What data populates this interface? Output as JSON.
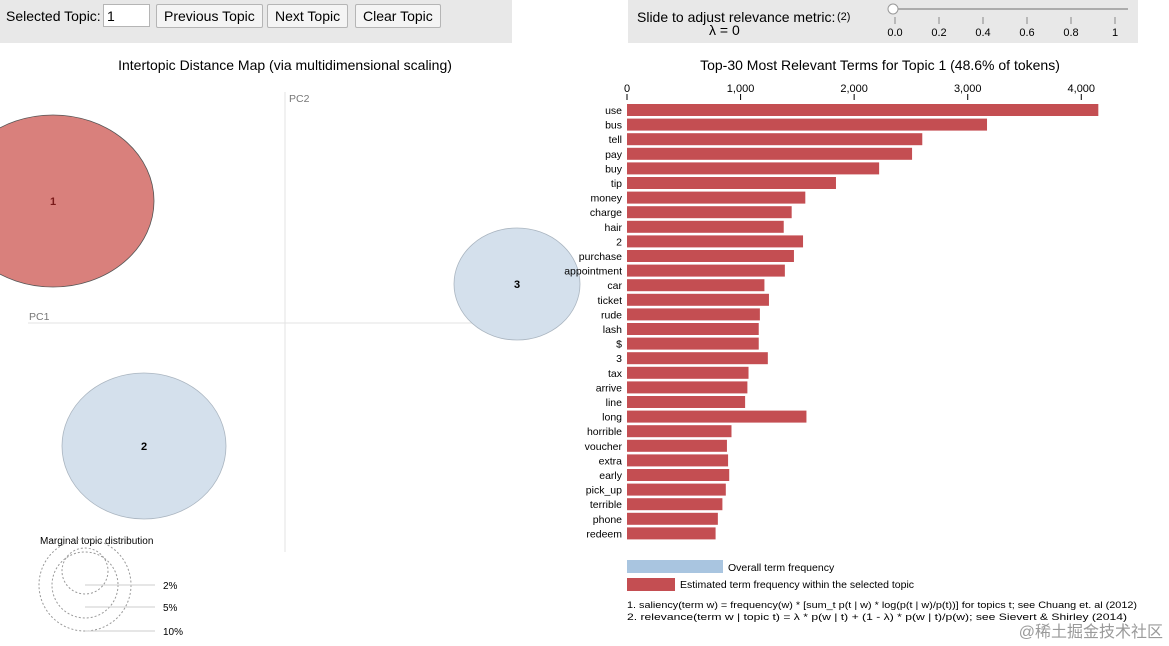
{
  "controls": {
    "selected_label": "Selected Topic:",
    "selected_value": "1",
    "prev_label": "Previous Topic",
    "next_label": "Next Topic",
    "clear_label": "Clear Topic",
    "slider_label": "Slide to adjust relevance metric:",
    "slider_note": "(2)",
    "lambda_text": "λ = 0",
    "slider_ticks": [
      "0.0",
      "0.2",
      "0.4",
      "0.6",
      "0.8",
      "1"
    ],
    "lambda_value": 0
  },
  "left": {
    "title": "Intertopic Distance Map (via multidimensional scaling)",
    "pc1": "PC1",
    "pc2": "PC2",
    "topics": [
      "1",
      "2",
      "3"
    ],
    "marginal_title": "Marginal topic distribution",
    "marginal_labels": [
      "2%",
      "5%",
      "10%"
    ]
  },
  "legend": {
    "overall": "Overall term frequency",
    "estimated": "Estimated term frequency within the selected topic"
  },
  "footnote": {
    "line1": "1. saliency(term w) = frequency(w) * [sum_t p(t | w) * log(p(t | w)/p(t))] for topics t; see Chuang et. al (2012)",
    "line2": "2. relevance(term w | topic t) = λ * p(w | t) + (1 - λ) * p(w | t)/p(w); see Sievert & Shirley (2014)"
  },
  "watermark": "@稀土掘金技术社区",
  "colors": {
    "estimated": "#c44e52",
    "overall": "#a9c5e0",
    "topic_selected": "#d9807c",
    "topic_other": "#d4e0ec"
  },
  "chart_data": {
    "type": "bar",
    "orientation": "horizontal",
    "title": "Top-30 Most Relevant Terms for Topic 1 (48.6% of tokens)",
    "xlim": [
      0,
      4200
    ],
    "xticks": [
      0,
      1000,
      2000,
      3000,
      4000
    ],
    "xtick_labels": [
      "0",
      "1,000",
      "2,000",
      "3,000",
      "4,000"
    ],
    "categories": [
      "use",
      "bus",
      "tell",
      "pay",
      "buy",
      "tip",
      "money",
      "charge",
      "hair",
      "2",
      "purchase",
      "appointment",
      "car",
      "ticket",
      "rude",
      "lash",
      "$",
      "3",
      "tax",
      "arrive",
      "line",
      "long",
      "horrible",
      "voucher",
      "extra",
      "early",
      "pick_up",
      "terrible",
      "phone",
      "redeem"
    ],
    "series": [
      {
        "name": "Estimated term frequency within the selected topic",
        "values": [
          4150,
          3170,
          2600,
          2510,
          2220,
          1840,
          1570,
          1450,
          1380,
          1550,
          1470,
          1390,
          1210,
          1250,
          1170,
          1160,
          1160,
          1240,
          1070,
          1060,
          1040,
          1580,
          920,
          880,
          890,
          900,
          870,
          840,
          800,
          780
        ]
      }
    ]
  }
}
